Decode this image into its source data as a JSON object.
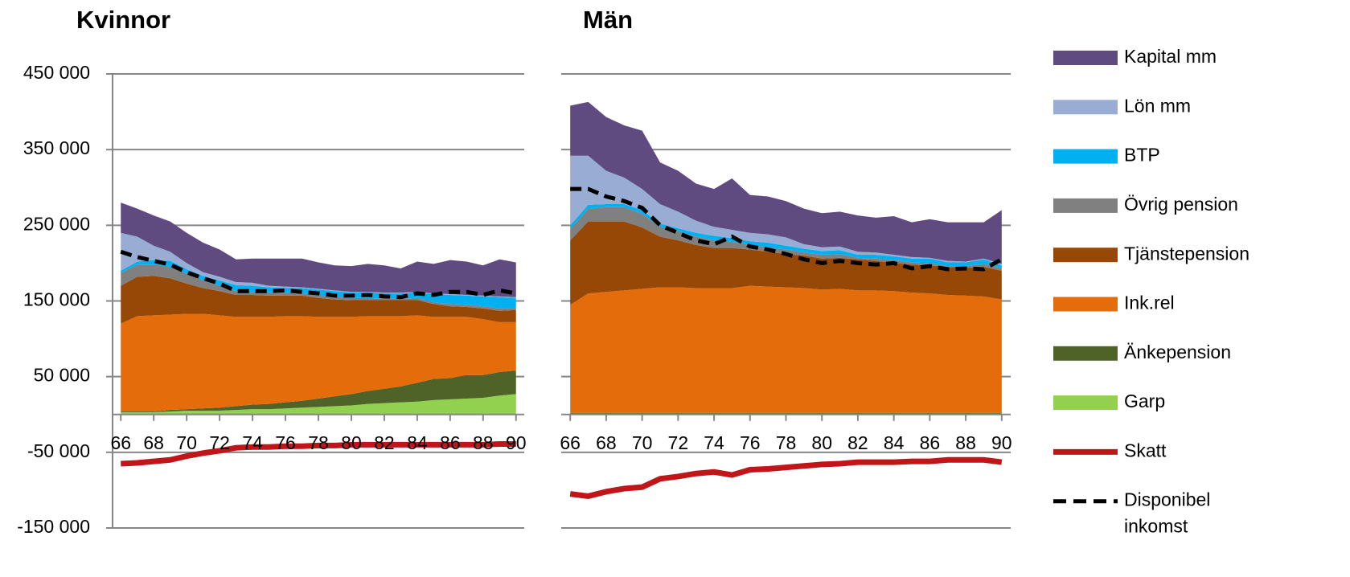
{
  "chart_data": [
    {
      "type": "area",
      "title": "Kvinnor",
      "x": [
        66,
        67,
        68,
        69,
        70,
        71,
        72,
        73,
        74,
        75,
        76,
        77,
        78,
        79,
        80,
        81,
        82,
        83,
        84,
        85,
        86,
        87,
        88,
        89,
        90
      ],
      "xticks": [
        66,
        68,
        70,
        72,
        74,
        76,
        78,
        80,
        82,
        84,
        86,
        88,
        90
      ],
      "xlim": [
        65.5,
        90.5
      ],
      "ylim": [
        -150000,
        450000
      ],
      "yticks": [
        {
          "value": -150000,
          "label": "-150 000"
        },
        {
          "value": -50000,
          "label": "-50 000"
        },
        {
          "value": 50000,
          "label": "50 000"
        },
        {
          "value": 150000,
          "label": "150 000"
        },
        {
          "value": 250000,
          "label": "250 000"
        },
        {
          "value": 350000,
          "label": "350 000"
        },
        {
          "value": 450000,
          "label": "450 000"
        }
      ],
      "grid": true,
      "series": [
        {
          "name": "Kapital mm",
          "color": "#5f4b7f",
          "kind": "area",
          "values": [
            40000,
            37000,
            40000,
            40000,
            40000,
            39000,
            36000,
            30000,
            32000,
            36000,
            37000,
            38000,
            35000,
            33000,
            34000,
            37000,
            36000,
            32000,
            40000,
            39000,
            45000,
            44000,
            40000,
            49000,
            46000
          ]
        },
        {
          "name": "Lön mm",
          "color": "#98acd4",
          "kind": "area",
          "values": [
            50000,
            33000,
            19000,
            12000,
            8000,
            5000,
            5000,
            4000,
            4000,
            2000,
            2000,
            1000,
            1000,
            1000,
            1000,
            1000,
            1000,
            1000,
            1000,
            1000,
            1000,
            1000,
            1000,
            1000,
            1000
          ]
        },
        {
          "name": "BTP",
          "color": "#00b0f0",
          "kind": "area",
          "values": [
            3000,
            4000,
            6000,
            8000,
            6000,
            6000,
            7000,
            8000,
            8000,
            7000,
            6000,
            7000,
            8000,
            8000,
            7000,
            7000,
            7000,
            7000,
            7000,
            11000,
            12000,
            12000,
            13000,
            15000,
            14000
          ]
        },
        {
          "name": "Övrig pension",
          "color": "#808080",
          "kind": "area",
          "values": [
            17000,
            16000,
            15000,
            15000,
            13000,
            10000,
            7000,
            5000,
            4000,
            4000,
            4000,
            3000,
            3000,
            3000,
            3000,
            3000,
            2000,
            2000,
            3000,
            2000,
            3000,
            3000,
            3000,
            3000,
            2000
          ]
        },
        {
          "name": "Tjänstepension",
          "color": "#974706",
          "kind": "area",
          "values": [
            50000,
            52000,
            52000,
            48000,
            40000,
            34000,
            32000,
            29000,
            29000,
            28000,
            27000,
            27000,
            25000,
            23000,
            22000,
            21000,
            21000,
            21000,
            20000,
            17000,
            14000,
            13000,
            14000,
            15000,
            16000
          ]
        },
        {
          "name": "Ink.rel",
          "color": "#e46c0a",
          "kind": "area",
          "values": [
            116000,
            126000,
            127000,
            126000,
            126000,
            125000,
            122000,
            118000,
            116000,
            115000,
            114000,
            112000,
            108000,
            105000,
            102000,
            99000,
            96000,
            93000,
            89000,
            82000,
            81000,
            77000,
            74000,
            66000,
            64000
          ]
        },
        {
          "name": "Änkepension",
          "color": "#4f6228",
          "kind": "area",
          "values": [
            1000,
            1000,
            1000,
            2000,
            2000,
            3000,
            4000,
            5000,
            6000,
            7000,
            8000,
            9000,
            11000,
            13000,
            15000,
            17000,
            19000,
            21000,
            25000,
            28000,
            28000,
            31000,
            30000,
            31000,
            31000
          ]
        },
        {
          "name": "Garp",
          "color": "#92d050",
          "kind": "area",
          "values": [
            3000,
            3000,
            3000,
            4000,
            5000,
            5000,
            5000,
            6000,
            7000,
            7000,
            8000,
            9000,
            10000,
            11000,
            12000,
            14000,
            15000,
            16000,
            17000,
            19000,
            20000,
            21000,
            22000,
            25000,
            27000
          ]
        },
        {
          "name": "Skatt",
          "color": "#c0161a",
          "kind": "line",
          "values": [
            -65000,
            -64000,
            -62000,
            -60000,
            -55000,
            -51000,
            -48000,
            -44000,
            -43000,
            -43000,
            -42000,
            -42000,
            -41000,
            -41000,
            -40000,
            -40000,
            -40000,
            -40000,
            -40000,
            -40000,
            -40000,
            -40000,
            -40000,
            -39000,
            -39000
          ]
        },
        {
          "name": "Disponibel inkomst",
          "color": "#000000",
          "kind": "line",
          "dashed": true,
          "values": [
            215000,
            208000,
            203000,
            198000,
            188000,
            180000,
            173000,
            163000,
            163000,
            163000,
            164000,
            162000,
            160000,
            157000,
            157000,
            158000,
            156000,
            155000,
            160000,
            158000,
            162000,
            162000,
            158000,
            164000,
            160000
          ]
        }
      ]
    },
    {
      "type": "area",
      "title": "Män",
      "x": [
        66,
        67,
        68,
        69,
        70,
        71,
        72,
        73,
        74,
        75,
        76,
        77,
        78,
        79,
        80,
        81,
        82,
        83,
        84,
        85,
        86,
        87,
        88,
        89,
        90
      ],
      "xticks": [
        66,
        68,
        70,
        72,
        74,
        76,
        78,
        80,
        82,
        84,
        86,
        88,
        90
      ],
      "xlim": [
        65.5,
        90.5
      ],
      "ylim": [
        -150000,
        450000
      ],
      "yticks": [
        -150000,
        -50000,
        50000,
        150000,
        250000,
        350000,
        450000
      ],
      "grid": true,
      "series": [
        {
          "color": "#5f4b7f",
          "kind": "area",
          "values": [
            66000,
            71000,
            71000,
            69000,
            77000,
            55000,
            54000,
            49000,
            50000,
            68000,
            50000,
            50000,
            48000,
            47000,
            45000,
            46000,
            48000,
            46000,
            51000,
            46000,
            51000,
            51000,
            52000,
            48000,
            71000
          ]
        },
        {
          "color": "#98acd4",
          "kind": "area",
          "values": [
            92000,
            65000,
            44000,
            35000,
            28000,
            26000,
            22000,
            16000,
            12000,
            11000,
            11000,
            11000,
            11000,
            6000,
            5000,
            5000,
            4000,
            3000,
            2000,
            2000,
            1000,
            2000,
            1000,
            1000,
            2000
          ]
        },
        {
          "color": "#00b0f0",
          "kind": "area",
          "values": [
            5000,
            5000,
            4000,
            4000,
            5000,
            4000,
            4000,
            5000,
            6000,
            5000,
            5000,
            6000,
            5000,
            5000,
            5000,
            5000,
            4000,
            5000,
            5000,
            5000,
            6000,
            5000,
            5000,
            6000,
            4000
          ]
        },
        {
          "color": "#808080",
          "kind": "area",
          "values": [
            15000,
            17000,
            19000,
            19000,
            18000,
            13000,
            12000,
            11000,
            10000,
            8000,
            6000,
            6000,
            6000,
            4000,
            5000,
            5000,
            2000,
            3000,
            4000,
            3000,
            3000,
            1000,
            2000,
            4000,
            3000
          ]
        },
        {
          "color": "#974706",
          "kind": "area",
          "values": [
            85000,
            95000,
            93000,
            91000,
            81000,
            67000,
            62000,
            57000,
            53000,
            53000,
            48000,
            46000,
            44000,
            43000,
            41000,
            41000,
            41000,
            39000,
            37000,
            37000,
            37000,
            37000,
            37000,
            39000,
            38000
          ]
        },
        {
          "color": "#e46c0a",
          "kind": "area",
          "values": [
            143000,
            158000,
            160000,
            162000,
            164000,
            166000,
            166000,
            165000,
            165000,
            165000,
            168000,
            167000,
            166000,
            165000,
            163000,
            164000,
            162000,
            162000,
            161000,
            159000,
            158000,
            156000,
            155000,
            154000,
            150000
          ]
        },
        {
          "color": "#4f6228",
          "kind": "area",
          "values": [
            1000,
            1000,
            1000,
            1000,
            1000,
            1000,
            1000,
            1000,
            1000,
            1000,
            1000,
            1000,
            1000,
            1000,
            1000,
            1000,
            1000,
            1000,
            1000,
            1000,
            1000,
            1000,
            1000,
            1000,
            1000
          ]
        },
        {
          "color": "#92d050",
          "kind": "area",
          "values": [
            1000,
            1000,
            1000,
            1000,
            1000,
            1000,
            1000,
            1000,
            1000,
            1000,
            1000,
            1000,
            1000,
            1000,
            1000,
            1000,
            1000,
            1000,
            1000,
            1000,
            1000,
            1000,
            1000,
            1000,
            1000
          ]
        },
        {
          "color": "#c0161a",
          "kind": "line",
          "values": [
            -105000,
            -108000,
            -102000,
            -98000,
            -96000,
            -85000,
            -82000,
            -78000,
            -76000,
            -80000,
            -73000,
            -72000,
            -70000,
            -68000,
            -66000,
            -65000,
            -63000,
            -63000,
            -63000,
            -62000,
            -62000,
            -60000,
            -60000,
            -60000,
            -63000
          ]
        },
        {
          "color": "#000000",
          "kind": "line",
          "dashed": true,
          "values": [
            298000,
            298000,
            288000,
            282000,
            273000,
            250000,
            240000,
            230000,
            225000,
            235000,
            222000,
            218000,
            212000,
            205000,
            200000,
            203000,
            200000,
            198000,
            200000,
            193000,
            196000,
            192000,
            193000,
            192000,
            205000
          ]
        }
      ]
    }
  ]
}
